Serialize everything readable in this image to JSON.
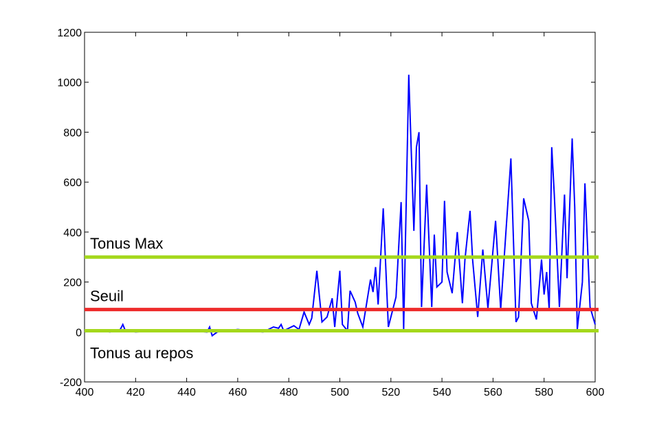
{
  "chart_data": {
    "type": "line",
    "x": [
      400,
      405,
      410,
      414,
      415,
      416,
      420,
      430,
      440,
      448,
      449,
      450,
      452,
      460,
      465,
      470,
      474,
      476,
      477,
      478,
      482,
      484,
      486,
      488,
      489,
      491,
      493,
      495,
      497,
      498,
      500,
      501,
      503,
      504,
      506,
      507,
      509,
      512,
      513,
      514,
      515,
      517,
      519,
      521,
      522,
      524,
      525,
      527,
      529,
      530,
      531,
      532,
      534,
      536,
      537,
      538,
      540,
      541,
      542,
      544,
      546,
      548,
      549,
      551,
      552,
      554,
      556,
      558,
      561,
      563,
      567,
      569,
      570,
      572,
      574,
      575,
      577,
      579,
      580,
      581,
      582,
      583,
      584,
      586,
      588,
      589,
      591,
      592,
      593,
      595,
      596,
      598,
      600
    ],
    "series": [
      {
        "color": "#0000ff",
        "values": [
          0,
          5,
          0,
          10,
          30,
          5,
          0,
          5,
          5,
          0,
          20,
          -15,
          0,
          10,
          5,
          0,
          20,
          15,
          30,
          5,
          25,
          10,
          80,
          30,
          55,
          245,
          40,
          60,
          135,
          20,
          245,
          30,
          5,
          165,
          120,
          75,
          20,
          210,
          160,
          260,
          110,
          495,
          20,
          100,
          140,
          520,
          10,
          1030,
          405,
          740,
          800,
          100,
          590,
          100,
          390,
          180,
          200,
          525,
          240,
          155,
          400,
          115,
          290,
          485,
          290,
          60,
          330,
          95,
          445,
          90,
          695,
          40,
          60,
          535,
          445,
          115,
          50,
          290,
          150,
          240,
          90,
          740,
          550,
          100,
          550,
          215,
          775,
          500,
          10,
          200,
          595,
          100,
          30
        ]
      }
    ],
    "reference_lines": [
      {
        "label": "Tonus Max",
        "value": 300,
        "color": "#a4d81c",
        "label_position": "above"
      },
      {
        "label": "Seuil",
        "value": 90,
        "color": "#ee2a2a",
        "label_position": "above"
      },
      {
        "label": "Tonus au repos",
        "value": 5,
        "color": "#a4d81c",
        "label_position": "below"
      }
    ],
    "xlim": [
      400,
      600
    ],
    "ylim": [
      -200,
      1200
    ],
    "xticks": [
      400,
      420,
      440,
      460,
      480,
      500,
      520,
      540,
      560,
      580,
      600
    ],
    "yticks": [
      -200,
      0,
      200,
      400,
      600,
      800,
      1000,
      1200
    ],
    "grid": false
  }
}
